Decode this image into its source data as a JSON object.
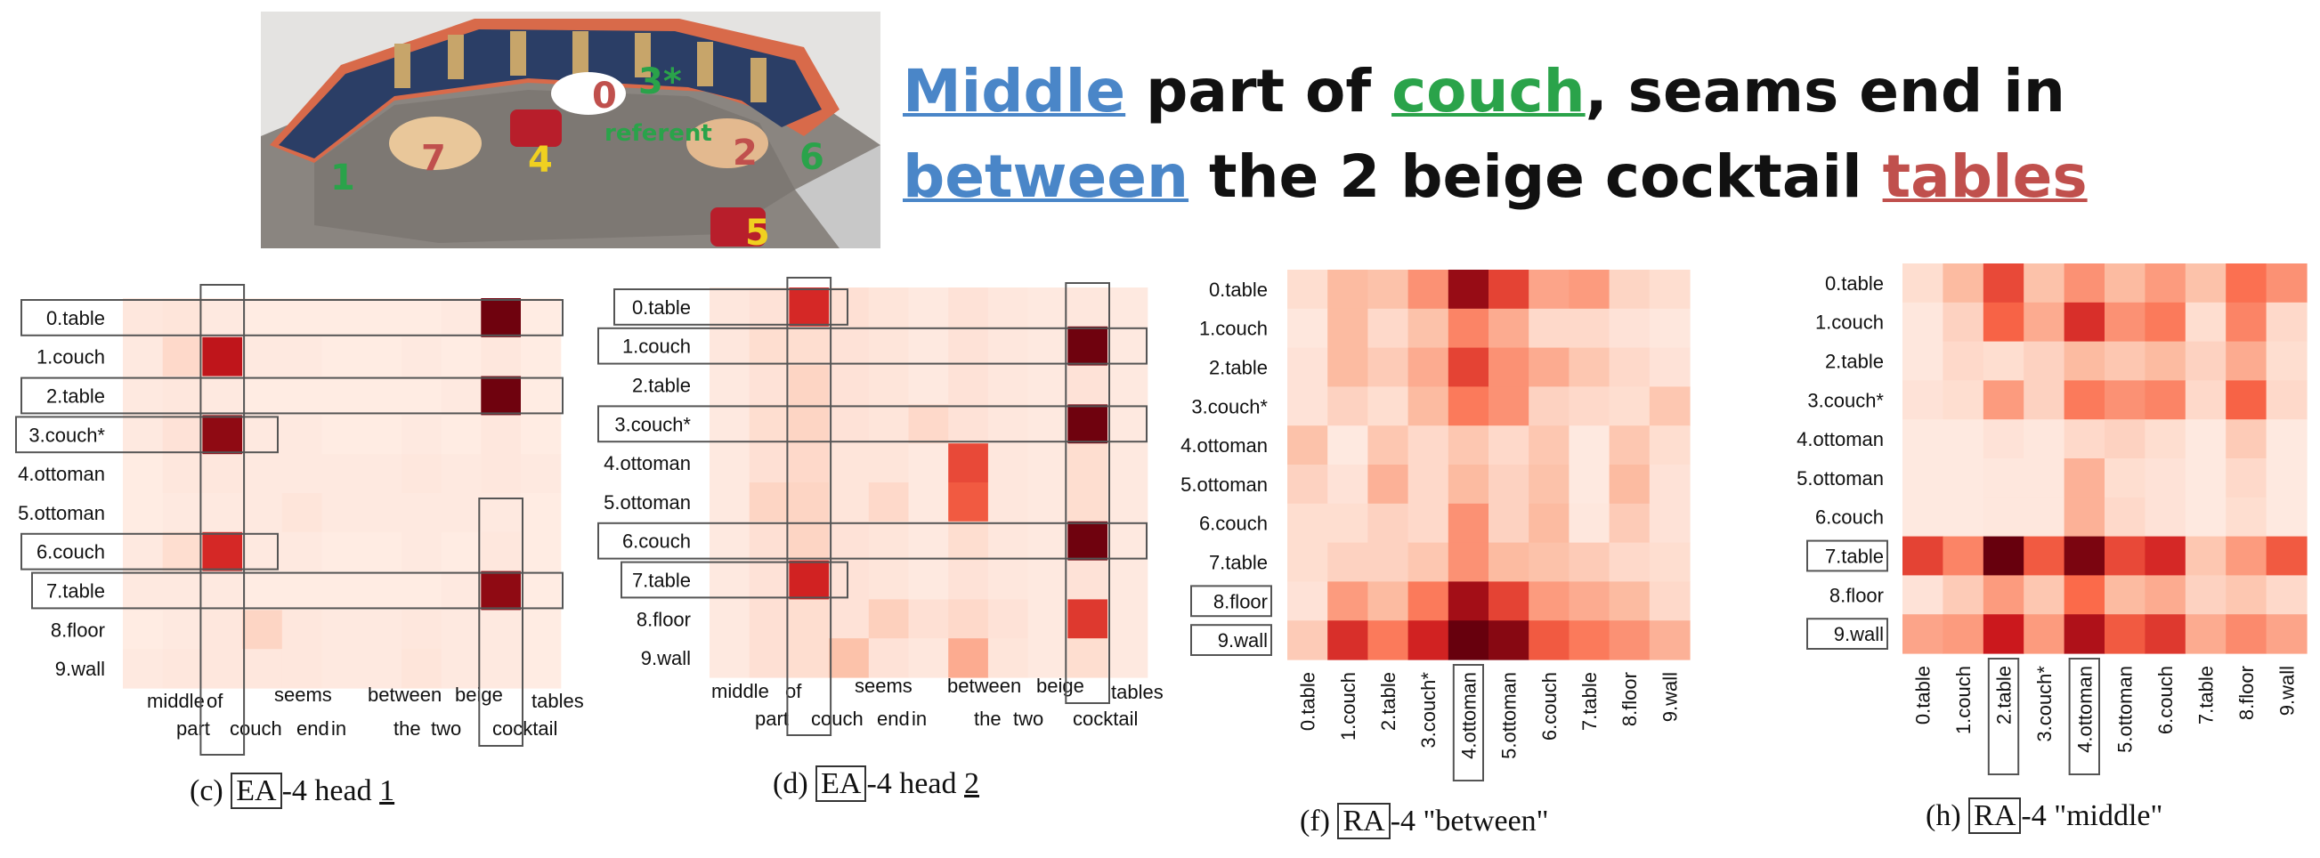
{
  "scene": {
    "labels": [
      {
        "text": "0",
        "color": "#c0504d"
      },
      {
        "text": "3*",
        "color": "#2aa34a"
      },
      {
        "text": "referent",
        "color": "#2aa34a"
      },
      {
        "text": "7",
        "color": "#c0504d"
      },
      {
        "text": "2",
        "color": "#c0504d"
      },
      {
        "text": "1",
        "color": "#2aa34a"
      },
      {
        "text": "4",
        "color": "#f0d020"
      },
      {
        "text": "6",
        "color": "#2aa34a"
      },
      {
        "text": "5",
        "color": "#f0d020"
      }
    ]
  },
  "sentence": {
    "line1": [
      {
        "text": "Middle",
        "style": "blue"
      },
      {
        "text": " part of ",
        "style": "plain"
      },
      {
        "text": "couch",
        "style": "green"
      },
      {
        "text": ", seams end in",
        "style": "plain"
      }
    ],
    "line2": [
      {
        "text": "between",
        "style": "blue"
      },
      {
        "text": " the 2 beige cocktail ",
        "style": "plain"
      },
      {
        "text": "tables",
        "style": "red"
      }
    ]
  },
  "colors": {
    "low": "#fff5f0",
    "high": "#67000d"
  },
  "chart_data": [
    {
      "type": "heatmap",
      "panel": "c",
      "rows": [
        "0.table",
        "1.couch",
        "2.table",
        "3.couch*",
        "4.ottoman",
        "5.ottoman",
        "6.couch",
        "7.table",
        "8.floor",
        "9.wall"
      ],
      "x_words_top": [
        "middle",
        "of",
        "seems",
        "between",
        "beige",
        "tables"
      ],
      "x_words_bottom": [
        "part",
        "couch",
        "end",
        "in",
        "the",
        "two",
        "cocktail"
      ],
      "values": [
        [
          0.06,
          0.07,
          0.05,
          0.04,
          0.04,
          0.04,
          0.04,
          0.04,
          0.05,
          0.98,
          0.04
        ],
        [
          0.05,
          0.12,
          0.78,
          0.05,
          0.05,
          0.04,
          0.04,
          0.05,
          0.04,
          0.06,
          0.04
        ],
        [
          0.05,
          0.06,
          0.05,
          0.04,
          0.04,
          0.04,
          0.04,
          0.04,
          0.05,
          0.98,
          0.04
        ],
        [
          0.05,
          0.08,
          0.9,
          0.05,
          0.05,
          0.04,
          0.04,
          0.05,
          0.04,
          0.06,
          0.04
        ],
        [
          0.04,
          0.06,
          0.06,
          0.05,
          0.05,
          0.05,
          0.05,
          0.06,
          0.05,
          0.06,
          0.05
        ],
        [
          0.04,
          0.05,
          0.05,
          0.05,
          0.07,
          0.05,
          0.05,
          0.05,
          0.05,
          0.05,
          0.04
        ],
        [
          0.05,
          0.1,
          0.7,
          0.05,
          0.05,
          0.04,
          0.04,
          0.05,
          0.04,
          0.06,
          0.04
        ],
        [
          0.05,
          0.05,
          0.05,
          0.04,
          0.04,
          0.04,
          0.04,
          0.04,
          0.05,
          0.9,
          0.04
        ],
        [
          0.04,
          0.05,
          0.06,
          0.14,
          0.06,
          0.05,
          0.05,
          0.06,
          0.05,
          0.05,
          0.04
        ],
        [
          0.05,
          0.06,
          0.06,
          0.06,
          0.06,
          0.05,
          0.05,
          0.07,
          0.05,
          0.05,
          0.04
        ]
      ],
      "caption": {
        "pre": "(c) ",
        "boxed": "EA",
        "mid": "-4 head ",
        "ul": "1"
      }
    },
    {
      "type": "heatmap",
      "panel": "d",
      "rows": [
        "0.table",
        "1.couch",
        "2.table",
        "3.couch*",
        "4.ottoman",
        "5.ottoman",
        "6.couch",
        "7.table",
        "8.floor",
        "9.wall"
      ],
      "x_words_top": [
        "middle",
        "of",
        "seems",
        "between",
        "beige",
        "tables"
      ],
      "x_words_bottom": [
        "part",
        "couch",
        "end",
        "in",
        "the",
        "two",
        "cocktail"
      ],
      "values": [
        [
          0.06,
          0.08,
          0.7,
          0.09,
          0.07,
          0.05,
          0.08,
          0.06,
          0.05,
          0.06,
          0.05
        ],
        [
          0.06,
          0.1,
          0.1,
          0.08,
          0.07,
          0.05,
          0.08,
          0.06,
          0.05,
          0.98,
          0.05
        ],
        [
          0.05,
          0.08,
          0.14,
          0.08,
          0.07,
          0.05,
          0.08,
          0.06,
          0.05,
          0.08,
          0.05
        ],
        [
          0.05,
          0.1,
          0.14,
          0.08,
          0.07,
          0.12,
          0.08,
          0.06,
          0.05,
          0.98,
          0.05
        ],
        [
          0.05,
          0.09,
          0.12,
          0.07,
          0.07,
          0.05,
          0.6,
          0.06,
          0.05,
          0.1,
          0.05
        ],
        [
          0.05,
          0.14,
          0.14,
          0.07,
          0.12,
          0.05,
          0.55,
          0.06,
          0.05,
          0.1,
          0.05
        ],
        [
          0.05,
          0.09,
          0.14,
          0.08,
          0.07,
          0.05,
          0.1,
          0.06,
          0.05,
          0.98,
          0.05
        ],
        [
          0.05,
          0.08,
          0.72,
          0.08,
          0.07,
          0.05,
          0.08,
          0.06,
          0.05,
          0.08,
          0.05
        ],
        [
          0.05,
          0.09,
          0.1,
          0.08,
          0.16,
          0.09,
          0.12,
          0.08,
          0.05,
          0.65,
          0.05
        ],
        [
          0.05,
          0.09,
          0.1,
          0.22,
          0.08,
          0.06,
          0.3,
          0.07,
          0.05,
          0.1,
          0.05
        ]
      ],
      "caption": {
        "pre": "(d) ",
        "boxed": "EA",
        "mid": "-4 head ",
        "ul": "2"
      }
    },
    {
      "type": "heatmap",
      "panel": "f",
      "rows": [
        "0.table",
        "1.couch",
        "2.table",
        "3.couch*",
        "4.ottoman",
        "5.ottoman",
        "6.couch",
        "7.table",
        "8.floor",
        "9.wall"
      ],
      "cols": [
        "0.table",
        "1.couch",
        "2.table",
        "3.couch*",
        "4.ottoman",
        "5.ottoman",
        "6.couch",
        "7.table",
        "8.floor",
        "9.wall"
      ],
      "values": [
        [
          0.1,
          0.25,
          0.22,
          0.38,
          0.88,
          0.62,
          0.32,
          0.35,
          0.14,
          0.1
        ],
        [
          0.06,
          0.25,
          0.12,
          0.22,
          0.42,
          0.3,
          0.12,
          0.12,
          0.08,
          0.06
        ],
        [
          0.08,
          0.25,
          0.18,
          0.3,
          0.62,
          0.38,
          0.3,
          0.2,
          0.12,
          0.08
        ],
        [
          0.08,
          0.15,
          0.1,
          0.25,
          0.45,
          0.38,
          0.15,
          0.12,
          0.1,
          0.2
        ],
        [
          0.22,
          0.05,
          0.2,
          0.12,
          0.2,
          0.12,
          0.2,
          0.05,
          0.2,
          0.1
        ],
        [
          0.15,
          0.08,
          0.28,
          0.12,
          0.25,
          0.15,
          0.22,
          0.05,
          0.25,
          0.08
        ],
        [
          0.1,
          0.1,
          0.15,
          0.12,
          0.38,
          0.15,
          0.25,
          0.06,
          0.18,
          0.08
        ],
        [
          0.1,
          0.15,
          0.15,
          0.2,
          0.38,
          0.25,
          0.22,
          0.18,
          0.12,
          0.1
        ],
        [
          0.08,
          0.35,
          0.25,
          0.45,
          0.85,
          0.62,
          0.35,
          0.3,
          0.25,
          0.12
        ],
        [
          0.18,
          0.68,
          0.45,
          0.72,
          1.0,
          0.92,
          0.55,
          0.45,
          0.38,
          0.28
        ]
      ],
      "caption": {
        "pre": "(f) ",
        "boxed": "RA",
        "mid": "-4 \"between\"",
        "ul": ""
      }
    },
    {
      "type": "heatmap",
      "panel": "h",
      "rows": [
        "0.table",
        "1.couch",
        "2.table",
        "3.couch*",
        "4.ottoman",
        "5.ottoman",
        "6.couch",
        "7.table",
        "8.floor",
        "9.wall"
      ],
      "cols": [
        "0.table",
        "1.couch",
        "2.table",
        "3.couch*",
        "4.ottoman",
        "5.ottoman",
        "6.couch",
        "7.table",
        "8.floor",
        "9.wall"
      ],
      "values": [
        [
          0.1,
          0.25,
          0.6,
          0.22,
          0.38,
          0.25,
          0.35,
          0.22,
          0.48,
          0.38
        ],
        [
          0.06,
          0.15,
          0.52,
          0.3,
          0.68,
          0.38,
          0.45,
          0.1,
          0.42,
          0.12
        ],
        [
          0.06,
          0.12,
          0.1,
          0.15,
          0.25,
          0.2,
          0.25,
          0.15,
          0.3,
          0.1
        ],
        [
          0.08,
          0.1,
          0.35,
          0.15,
          0.45,
          0.38,
          0.42,
          0.12,
          0.52,
          0.12
        ],
        [
          0.05,
          0.05,
          0.08,
          0.06,
          0.12,
          0.15,
          0.1,
          0.05,
          0.18,
          0.05
        ],
        [
          0.05,
          0.05,
          0.06,
          0.06,
          0.28,
          0.1,
          0.08,
          0.05,
          0.12,
          0.05
        ],
        [
          0.05,
          0.05,
          0.06,
          0.06,
          0.28,
          0.12,
          0.08,
          0.05,
          0.1,
          0.05
        ],
        [
          0.62,
          0.42,
          1.0,
          0.55,
          0.95,
          0.6,
          0.7,
          0.2,
          0.35,
          0.55
        ],
        [
          0.08,
          0.18,
          0.35,
          0.2,
          0.5,
          0.25,
          0.3,
          0.15,
          0.2,
          0.12
        ],
        [
          0.32,
          0.35,
          0.75,
          0.35,
          0.82,
          0.55,
          0.65,
          0.3,
          0.4,
          0.32
        ]
      ],
      "caption": {
        "pre": "(h) ",
        "boxed": "RA",
        "mid": "-4 \"middle\"",
        "ul": ""
      }
    }
  ]
}
